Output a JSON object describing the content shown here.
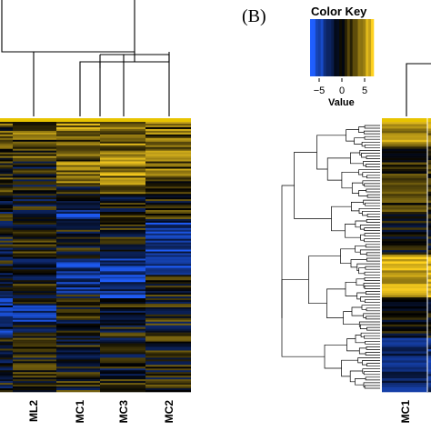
{
  "panel_b_label": "(B)",
  "color_key": {
    "title": "Color Key",
    "value_label": "Value",
    "ticks": [
      "−5",
      "0",
      "5"
    ],
    "tick_values": [
      -5,
      0,
      5
    ],
    "range": [
      -7,
      7
    ],
    "low_color": "#1f5fff",
    "mid_color": "#000000",
    "high_color": "#ffd21f"
  },
  "chart_data": [
    {
      "type": "heatmap",
      "panel": "A",
      "columns": [
        "ML2",
        "MC1",
        "MC3",
        "MC2"
      ],
      "title": "",
      "xlabel": "",
      "ylabel": ""
    },
    {
      "type": "heatmap",
      "panel": "B",
      "columns": [
        "MC1"
      ],
      "title": "",
      "xlabel": "",
      "ylabel": ""
    }
  ]
}
